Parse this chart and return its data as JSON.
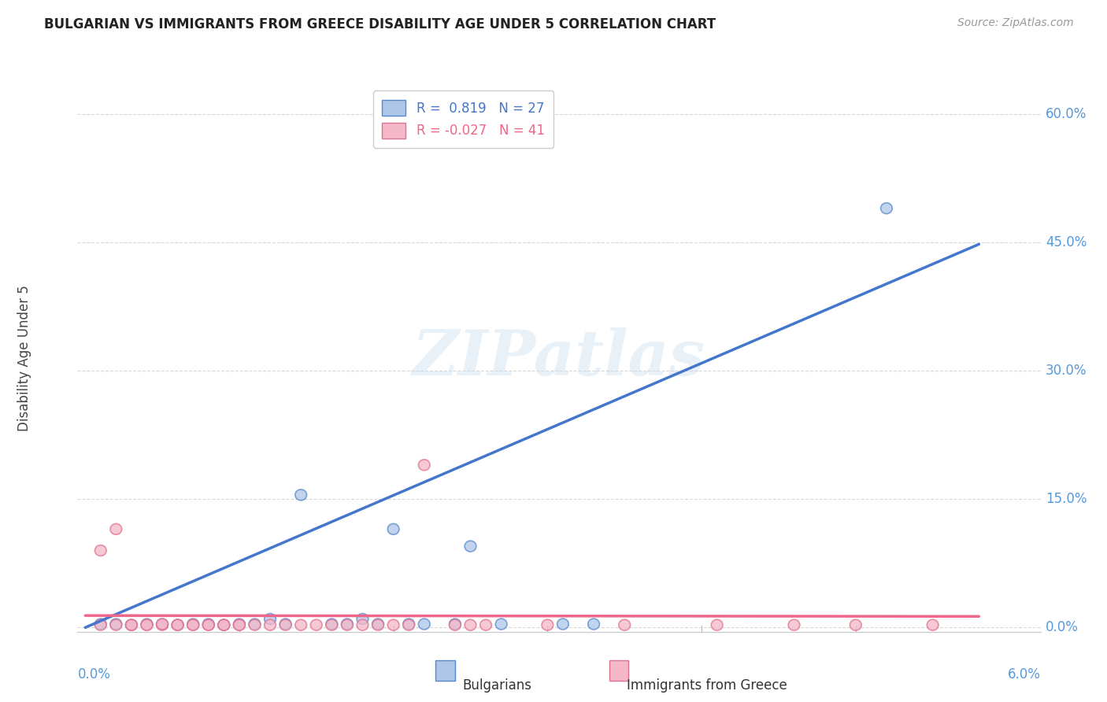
{
  "title": "BULGARIAN VS IMMIGRANTS FROM GREECE DISABILITY AGE UNDER 5 CORRELATION CHART",
  "source": "Source: ZipAtlas.com",
  "ylabel": "Disability Age Under 5",
  "bg_color": "#ffffff",
  "grid_color": "#d8d8d8",
  "watermark_text": "ZIPatlas",
  "blue_r": 0.819,
  "blue_n": 27,
  "pink_r": -0.027,
  "pink_n": 41,
  "blue_fill": "#aec6e8",
  "blue_edge": "#5588cc",
  "pink_fill": "#f4b8c8",
  "pink_edge": "#e07090",
  "blue_line": "#4477cc",
  "pink_line": "#ee6688",
  "right_tick_color": "#5599dd",
  "left_tick_color": "#5599dd",
  "ytick_labels": [
    "0.0%",
    "15.0%",
    "30.0%",
    "45.0%",
    "60.0%"
  ],
  "ytick_values": [
    0.0,
    0.15,
    0.3,
    0.45,
    0.6
  ],
  "xlim": [
    -0.0005,
    0.062
  ],
  "ylim": [
    -0.005,
    0.635
  ],
  "blue_scatter_x": [
    0.001,
    0.002,
    0.003,
    0.004,
    0.005,
    0.006,
    0.007,
    0.008,
    0.009,
    0.01,
    0.011,
    0.012,
    0.013,
    0.014,
    0.016,
    0.017,
    0.018,
    0.019,
    0.02,
    0.021,
    0.022,
    0.024,
    0.025,
    0.027,
    0.031,
    0.033,
    0.052
  ],
  "blue_scatter_y": [
    0.004,
    0.004,
    0.003,
    0.004,
    0.004,
    0.003,
    0.004,
    0.004,
    0.003,
    0.004,
    0.004,
    0.01,
    0.004,
    0.155,
    0.004,
    0.004,
    0.01,
    0.004,
    0.115,
    0.004,
    0.004,
    0.004,
    0.095,
    0.004,
    0.004,
    0.004,
    0.49
  ],
  "pink_scatter_x": [
    0.001,
    0.001,
    0.002,
    0.002,
    0.003,
    0.003,
    0.004,
    0.004,
    0.005,
    0.005,
    0.006,
    0.006,
    0.007,
    0.007,
    0.008,
    0.008,
    0.009,
    0.009,
    0.01,
    0.01,
    0.011,
    0.012,
    0.013,
    0.014,
    0.015,
    0.016,
    0.017,
    0.018,
    0.019,
    0.02,
    0.021,
    0.022,
    0.024,
    0.025,
    0.026,
    0.03,
    0.035,
    0.041,
    0.046,
    0.05,
    0.055
  ],
  "pink_scatter_y": [
    0.003,
    0.09,
    0.003,
    0.115,
    0.003,
    0.003,
    0.003,
    0.003,
    0.003,
    0.004,
    0.003,
    0.003,
    0.003,
    0.003,
    0.003,
    0.003,
    0.003,
    0.003,
    0.003,
    0.003,
    0.003,
    0.003,
    0.003,
    0.003,
    0.003,
    0.003,
    0.003,
    0.003,
    0.003,
    0.003,
    0.003,
    0.19,
    0.003,
    0.003,
    0.003,
    0.003,
    0.003,
    0.003,
    0.003,
    0.003,
    0.003
  ],
  "blue_trend_x": [
    0.0,
    0.058
  ],
  "blue_trend_y": [
    0.0,
    0.448
  ],
  "pink_trend_x": [
    0.0,
    0.058
  ],
  "pink_trend_y": [
    0.014,
    0.013
  ]
}
